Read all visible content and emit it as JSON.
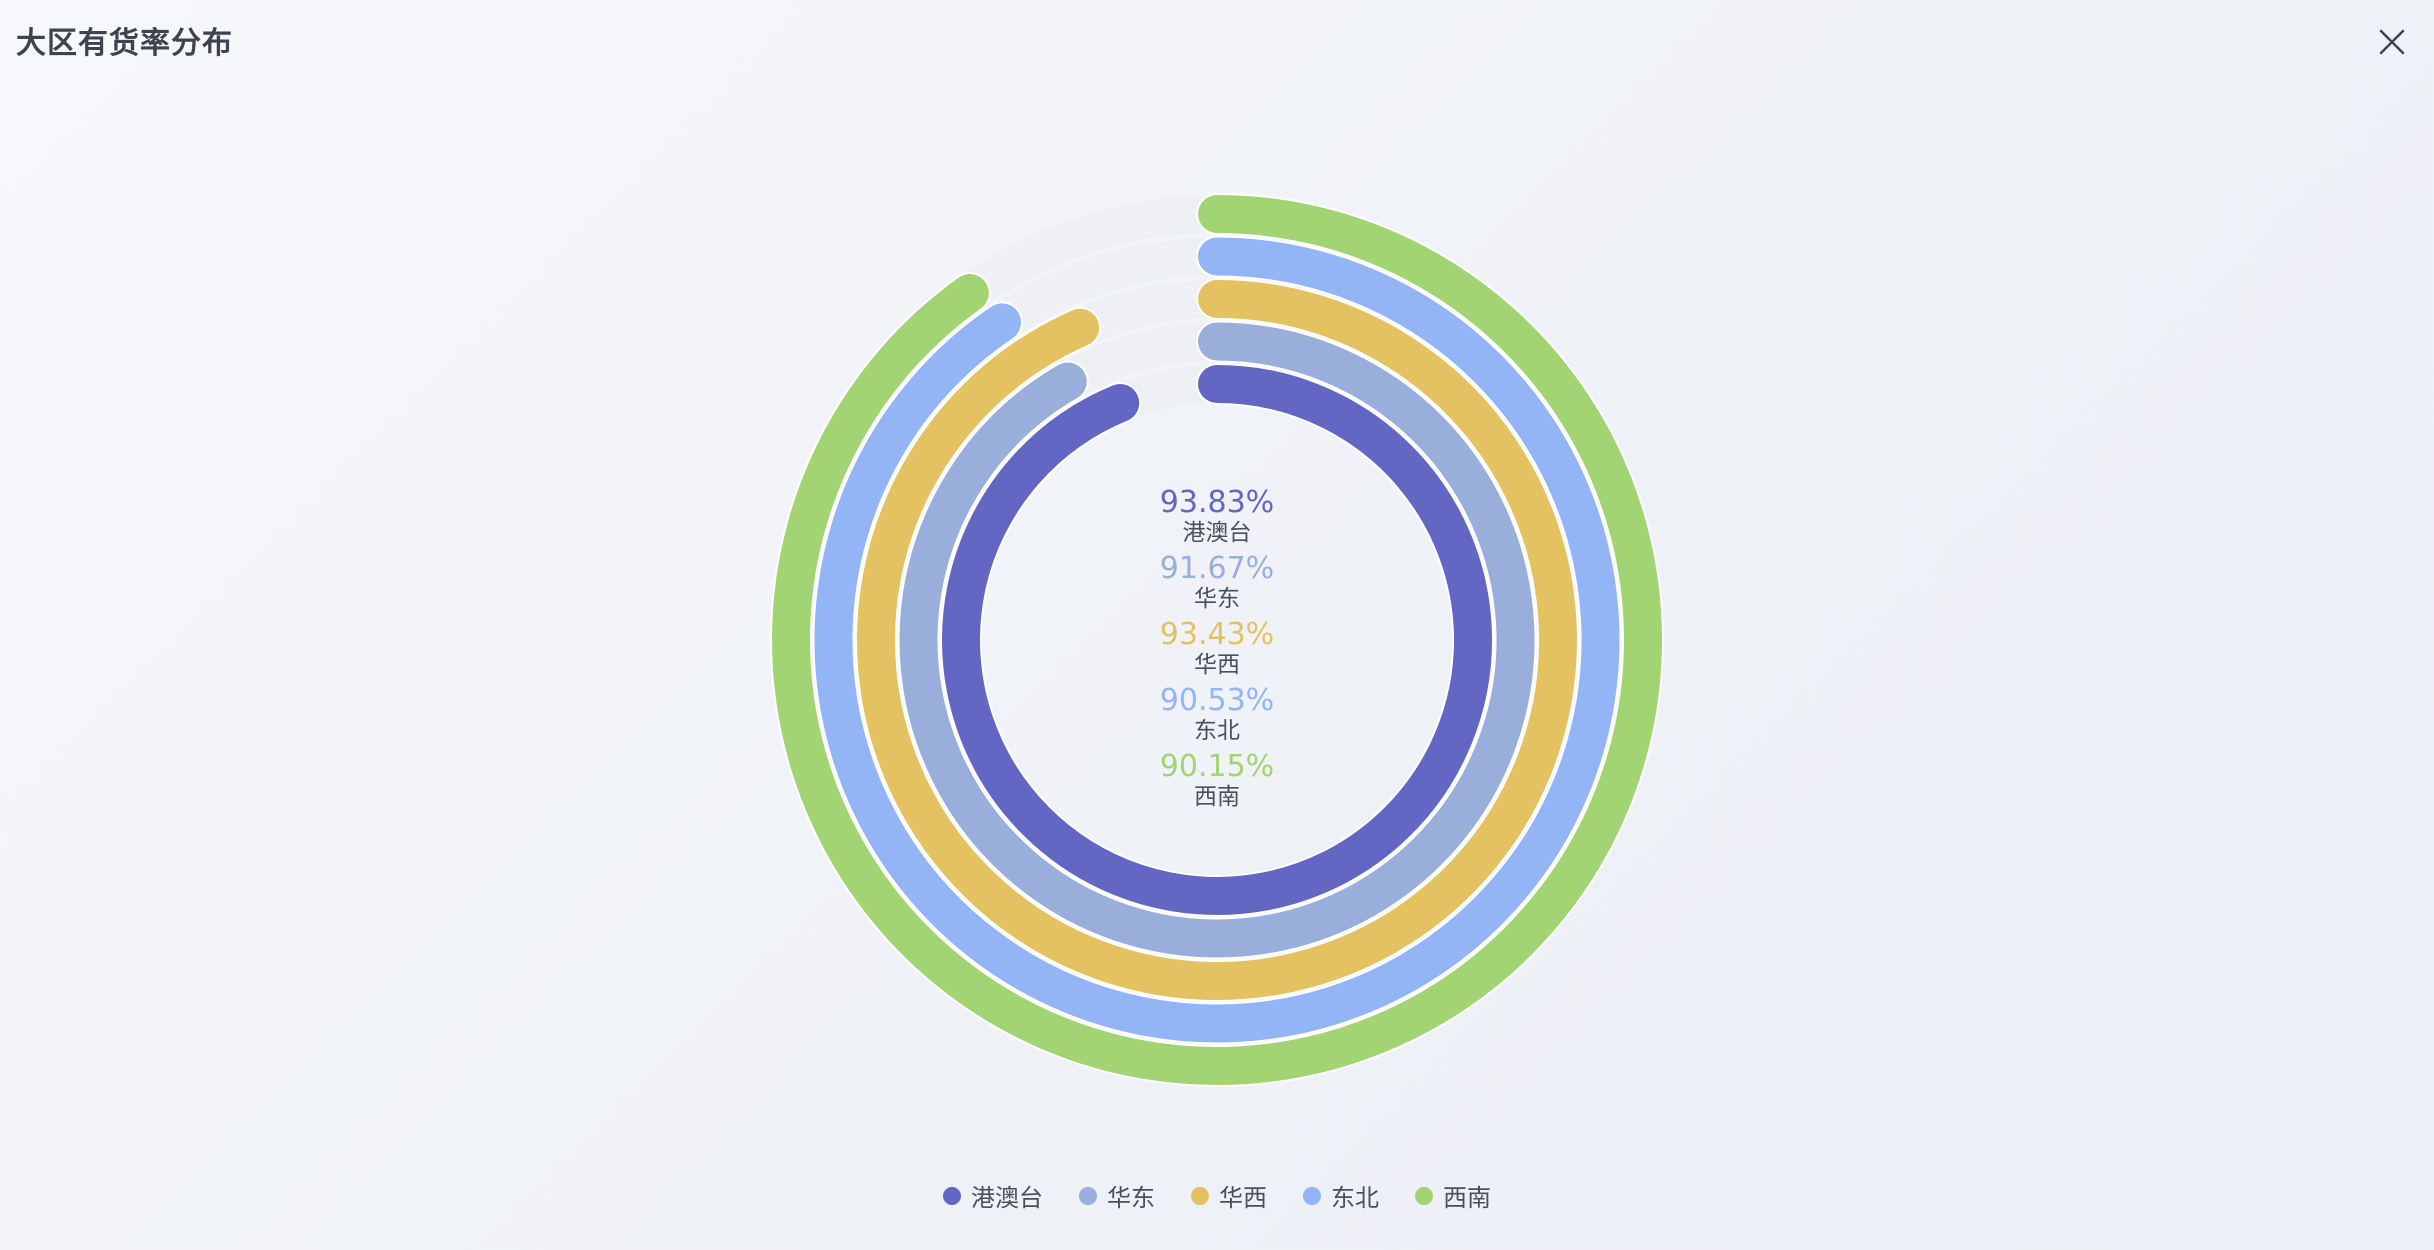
{
  "header": {
    "title": "大区有货率分布"
  },
  "icons": {
    "close": "close-icon"
  },
  "chart_data": {
    "type": "radial-bar",
    "title": "大区有货率分布",
    "unit": "%",
    "max": 100,
    "legend_position": "bottom-center",
    "series": [
      {
        "name": "港澳台",
        "value": 93.83,
        "label": "93.83%",
        "color": "#6366c2"
      },
      {
        "name": "华东",
        "value": 91.67,
        "label": "91.67%",
        "color": "#9aaedb"
      },
      {
        "name": "华西",
        "value": 93.43,
        "label": "93.43%",
        "color": "#e4c262"
      },
      {
        "name": "东北",
        "value": 90.53,
        "label": "90.53%",
        "color": "#93b4f5"
      },
      {
        "name": "西南",
        "value": 90.15,
        "label": "90.15%",
        "color": "#a3d473"
      }
    ]
  }
}
